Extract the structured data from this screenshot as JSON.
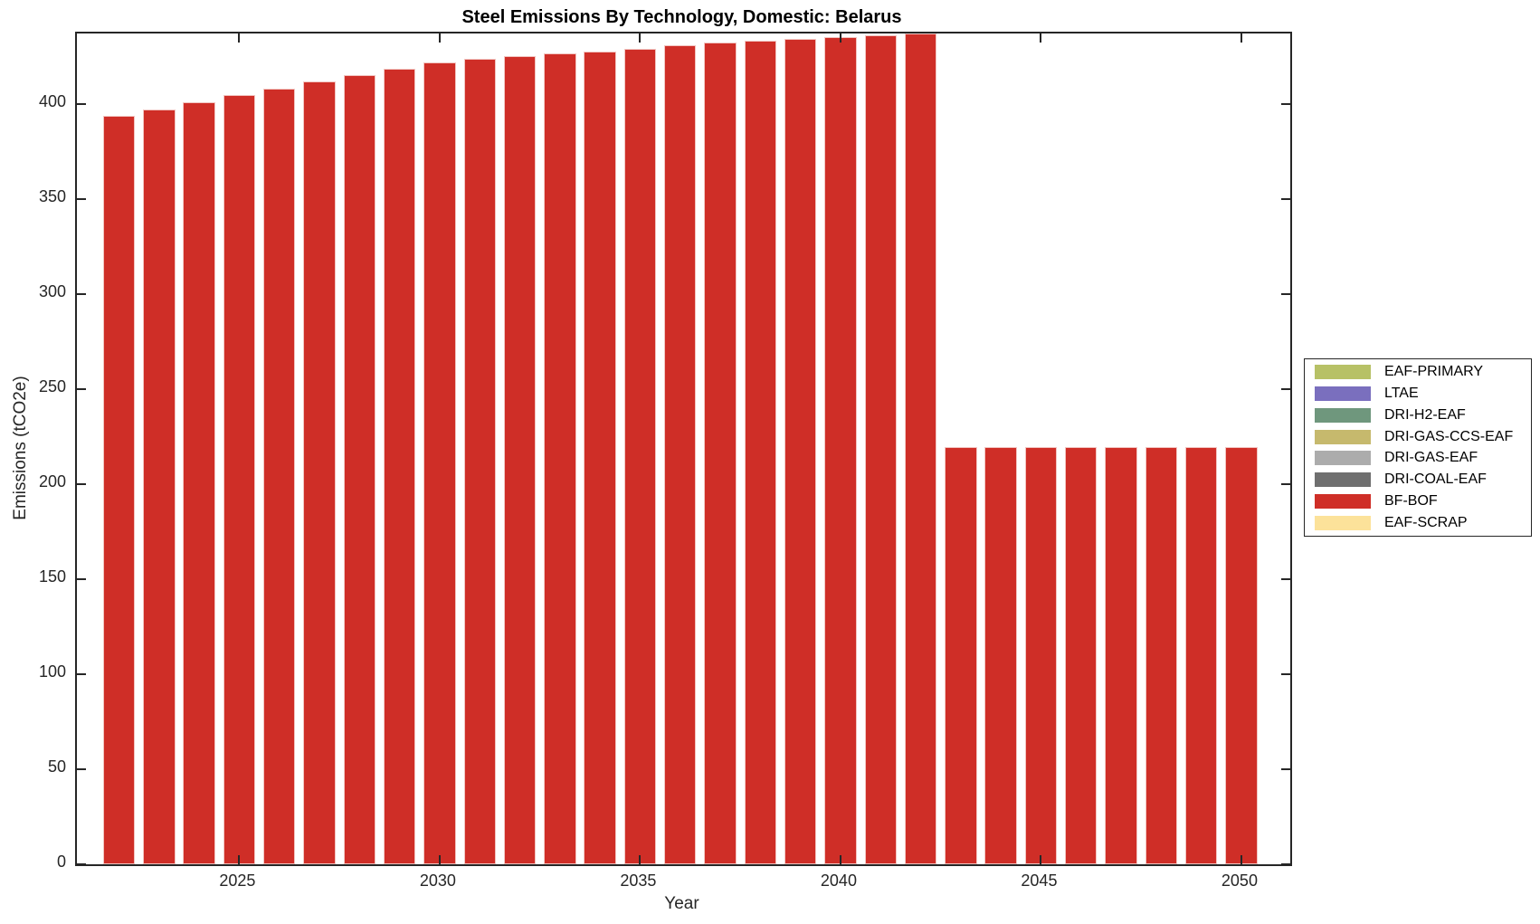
{
  "figure": {
    "background": "#ffffff"
  },
  "colors": {
    "axis": "#262626",
    "bar_fill": "#cf2e27",
    "title_text": "#000000"
  },
  "chart_data": {
    "type": "bar",
    "title": "Steel Emissions By Technology, Domestic: Belarus",
    "xlabel": "Year",
    "ylabel": "Emissions (tCO2e)",
    "grid": false,
    "legend_position": "right-outside",
    "xlim": [
      2020.95,
      2051.22
    ],
    "ylim": [
      0,
      437.4
    ],
    "xticks": [
      2025,
      2030,
      2035,
      2040,
      2045,
      2050
    ],
    "yticks": [
      0,
      50,
      100,
      150,
      200,
      250,
      300,
      350,
      400
    ],
    "x": [
      2022,
      2023,
      2024,
      2025,
      2026,
      2027,
      2028,
      2029,
      2030,
      2031,
      2032,
      2033,
      2034,
      2035,
      2036,
      2037,
      2038,
      2039,
      2040,
      2041,
      2042,
      2043,
      2044,
      2045,
      2046,
      2047,
      2048,
      2049,
      2050
    ],
    "series": [
      {
        "name": "BF-BOF",
        "color": "#cf2e27",
        "values": [
          394,
          397.5,
          401,
          405,
          408.5,
          412,
          415.5,
          419,
          422,
          424,
          425.5,
          427,
          428,
          429.5,
          431,
          432.5,
          433.5,
          434.5,
          435.5,
          436.5,
          437.5,
          219.5,
          219.5,
          219.5,
          219.5,
          219.5,
          219.5,
          219.5,
          219.5
        ]
      }
    ],
    "legend": [
      {
        "label": "EAF-PRIMARY",
        "color": "#b7c166"
      },
      {
        "label": "LTAE",
        "color": "#7a6fbe"
      },
      {
        "label": "DRI-H2-EAF",
        "color": "#6f977d"
      },
      {
        "label": "DRI-GAS-CCS-EAF",
        "color": "#c6b96d"
      },
      {
        "label": "DRI-GAS-EAF",
        "color": "#acacac"
      },
      {
        "label": "DRI-COAL-EAF",
        "color": "#6f6f6f"
      },
      {
        "label": "BF-BOF",
        "color": "#cf2e27"
      },
      {
        "label": "EAF-SCRAP",
        "color": "#fce29a"
      }
    ]
  }
}
